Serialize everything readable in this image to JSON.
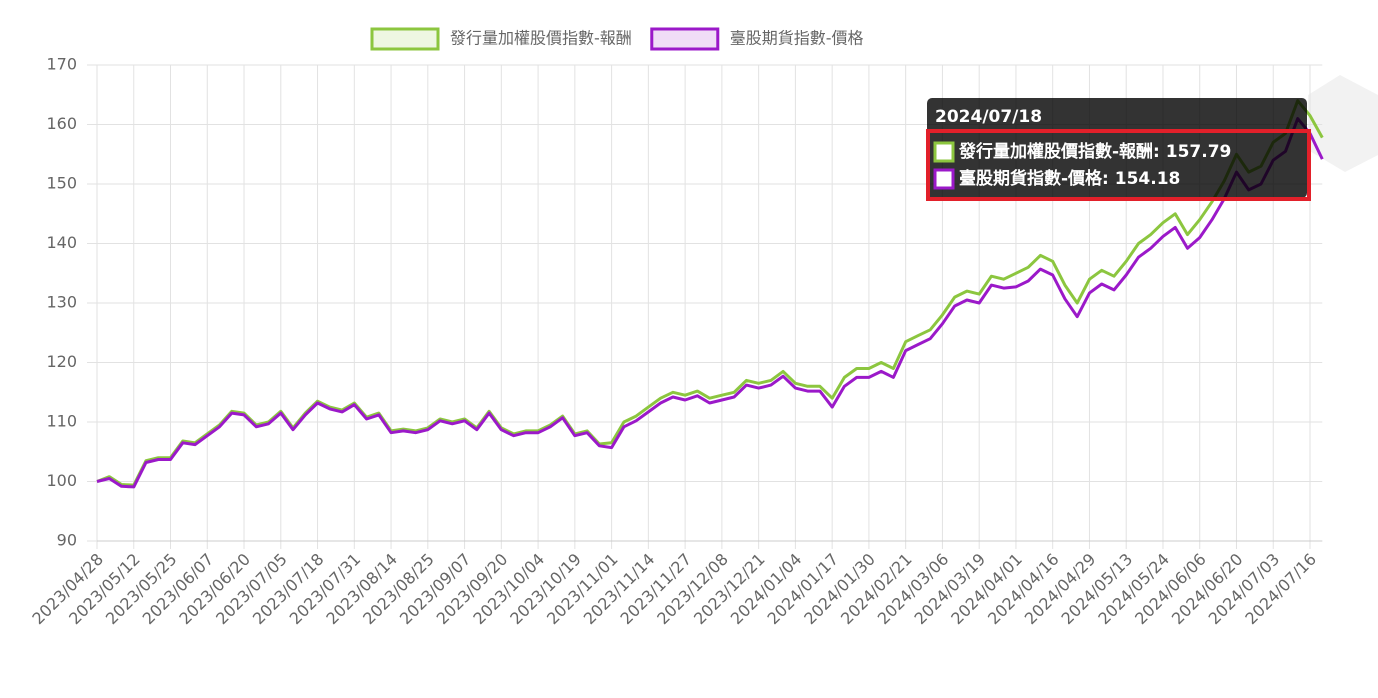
{
  "chart_data": {
    "type": "line",
    "categories": [
      "2023/04/28",
      null,
      null,
      "2023/05/12",
      null,
      null,
      "2023/05/25",
      null,
      null,
      "2023/06/07",
      null,
      null,
      "2023/06/20",
      null,
      null,
      "2023/07/05",
      null,
      null,
      "2023/07/18",
      null,
      null,
      "2023/07/31",
      null,
      null,
      "2023/08/14",
      null,
      null,
      "2023/08/25",
      null,
      null,
      "2023/09/07",
      null,
      null,
      "2023/09/20",
      null,
      null,
      "2023/10/04",
      null,
      null,
      "2023/10/19",
      null,
      null,
      "2023/11/01",
      null,
      null,
      "2023/11/14",
      null,
      null,
      "2023/11/27",
      null,
      null,
      "2023/12/08",
      null,
      null,
      "2023/12/21",
      null,
      null,
      "2024/01/04",
      null,
      null,
      "2024/01/17",
      null,
      null,
      "2024/01/30",
      null,
      null,
      "2024/02/21",
      null,
      null,
      "2024/03/06",
      null,
      null,
      "2024/03/19",
      null,
      null,
      "2024/04/01",
      null,
      null,
      "2024/04/16",
      null,
      null,
      "2024/04/29",
      null,
      null,
      "2024/05/13",
      null,
      null,
      "2024/05/24",
      null,
      null,
      "2024/06/06",
      null,
      null,
      "2024/06/20",
      null,
      null,
      "2024/07/03",
      null,
      null,
      "2024/07/16",
      null
    ],
    "series": [
      {
        "name": "發行量加權股價指數-報酬",
        "color": "#8cc63f",
        "values": [
          100,
          100.8,
          99.5,
          99.4,
          103.5,
          104,
          104,
          106.8,
          106.5,
          108,
          109.5,
          111.8,
          111.5,
          109.5,
          110,
          111.8,
          109,
          111.5,
          113.5,
          112.5,
          112,
          113.2,
          110.8,
          111.5,
          108.5,
          108.8,
          108.5,
          109,
          110.5,
          110,
          110.5,
          109,
          111.8,
          109,
          108,
          108.5,
          108.5,
          109.5,
          111,
          108,
          108.5,
          106.3,
          106.5,
          110,
          111,
          112.5,
          114,
          115,
          114.5,
          115.2,
          114,
          114.5,
          115,
          117,
          116.5,
          117,
          118.5,
          116.5,
          116,
          116,
          114,
          117.5,
          119,
          119,
          120,
          119,
          123.5,
          124.5,
          125.5,
          128,
          131,
          132,
          131.5,
          134.5,
          134,
          135,
          136,
          138,
          137,
          133,
          130,
          134,
          135.5,
          134.5,
          137,
          140,
          141.5,
          143.5,
          145,
          141.5,
          144,
          147,
          150.5,
          155,
          152,
          153,
          157,
          158.5,
          164,
          161.5,
          157.79
        ]
      },
      {
        "name": "臺股期貨指數-價格",
        "color": "#9b19c9",
        "values": [
          100,
          100.5,
          99.2,
          99.1,
          103.2,
          103.7,
          103.7,
          106.5,
          106.2,
          107.7,
          109.2,
          111.5,
          111.2,
          109.2,
          109.7,
          111.5,
          108.7,
          111.2,
          113.2,
          112.2,
          111.7,
          112.9,
          110.5,
          111.2,
          108.2,
          108.5,
          108.2,
          108.7,
          110.2,
          109.7,
          110.2,
          108.7,
          111.5,
          108.7,
          107.7,
          108.2,
          108.2,
          109.2,
          110.7,
          107.7,
          108.2,
          106,
          105.7,
          109.2,
          110.2,
          111.7,
          113.2,
          114.2,
          113.7,
          114.4,
          113.2,
          113.7,
          114.2,
          116.2,
          115.7,
          116.2,
          117.7,
          115.7,
          115.2,
          115.2,
          112.5,
          116,
          117.5,
          117.5,
          118.5,
          117.5,
          122,
          123,
          124,
          126.5,
          129.5,
          130.5,
          130,
          133,
          132.5,
          132.7,
          133.7,
          135.7,
          134.7,
          130.7,
          127.7,
          131.7,
          133.2,
          132.2,
          134.7,
          137.7,
          139.2,
          141.2,
          142.7,
          139.2,
          141,
          144,
          147.5,
          152,
          149,
          150,
          154,
          155.5,
          161,
          158.5,
          154.18
        ]
      }
    ],
    "ylim": [
      90,
      170
    ],
    "yticks": [
      90,
      100,
      110,
      120,
      130,
      140,
      150,
      160,
      170
    ],
    "grid": true,
    "legend": "top",
    "tooltip": {
      "title": "2024/07/18",
      "lines": [
        "發行量加權股價指數-報酬: 157.79",
        "臺股期貨指數-價格: 154.18"
      ]
    }
  }
}
